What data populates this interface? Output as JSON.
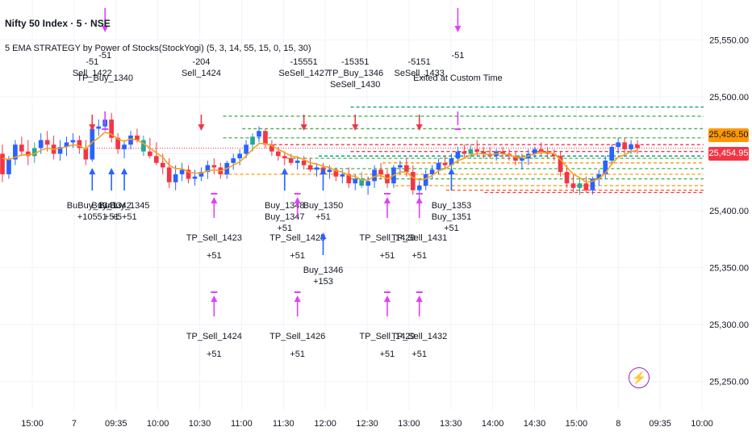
{
  "header": {
    "symbol_line": "Nifty 50 Index · 5 · NSE",
    "indicator_line": "5 EMA STRATEGY by Power of Stocks(StockYogi) (5, 3, 14, 55, 15, 0, 15, 30)"
  },
  "colors": {
    "up": "#2962ff",
    "down": "#f23645",
    "doji": "#9c27b0",
    "neutral_candle": "#26a69a",
    "ema": "#f7a21b",
    "buy_arrow": "#2962ff",
    "sell_arrow": "#f23645",
    "tp_marker": "#e040fb",
    "teal_line": "#009688",
    "price_tag_orange": "#ff9800",
    "price_tag_red": "#f23645"
  },
  "price_tags": {
    "upper": "25,456.50",
    "lower": "25,454.95"
  },
  "bolt_icon": "lightning-icon",
  "chart_data": {
    "type": "candlestick",
    "title": "Nifty 50 Index · 5 · NSE",
    "y_ticks": [
      "25,550.00",
      "25,500.00",
      "25,450.00",
      "25,400.00",
      "25,350.00",
      "25,300.00",
      "25,250.00"
    ],
    "y_tick_values": [
      25550,
      25500,
      25450,
      25400,
      25350,
      25300,
      25250
    ],
    "x_ticks": [
      "15:00",
      "7",
      "09:35",
      "10:00",
      "10:30",
      "11:00",
      "11:30",
      "12:00",
      "12:30",
      "13:00",
      "13:30",
      "14:00",
      "14:30",
      "15:00",
      "8",
      "09:35",
      "10:00"
    ],
    "ylim": [
      25225,
      25585
    ],
    "grid": true,
    "last_price": 25454.95,
    "upper_price": 25456.5,
    "candles": [
      [
        25450,
        25458,
        25425,
        25432
      ],
      [
        25432,
        25448,
        25428,
        25445
      ],
      [
        25445,
        25462,
        25440,
        25458
      ],
      [
        25458,
        25465,
        25448,
        25452
      ],
      [
        25452,
        25462,
        25440,
        25448
      ],
      [
        25448,
        25460,
        25442,
        25455
      ],
      [
        25455,
        25468,
        25450,
        25462
      ],
      [
        25462,
        25470,
        25452,
        25458
      ],
      [
        25458,
        25466,
        25445,
        25450
      ],
      [
        25450,
        25462,
        25444,
        25456
      ],
      [
        25456,
        25465,
        25448,
        25460
      ],
      [
        25460,
        25468,
        25455,
        25462
      ],
      [
        25462,
        25466,
        25450,
        25455
      ],
      [
        25455,
        25462,
        25440,
        25445
      ],
      [
        25445,
        25475,
        25443,
        25472
      ],
      [
        25472,
        25480,
        25466,
        25474
      ],
      [
        25474,
        25484,
        25470,
        25480
      ],
      [
        25480,
        25486,
        25460,
        25464
      ],
      [
        25464,
        25468,
        25450,
        25454
      ],
      [
        25454,
        25462,
        25446,
        25458
      ],
      [
        25458,
        25470,
        25454,
        25466
      ],
      [
        25466,
        25472,
        25460,
        25462
      ],
      [
        25462,
        25466,
        25448,
        25452
      ],
      [
        25452,
        25464,
        25446,
        25448
      ],
      [
        25448,
        25460,
        25440,
        25442
      ],
      [
        25442,
        25450,
        25432,
        25438
      ],
      [
        25438,
        25446,
        25420,
        25425
      ],
      [
        25425,
        25440,
        25418,
        25432
      ],
      [
        25432,
        25442,
        25426,
        25436
      ],
      [
        25436,
        25440,
        25424,
        25428
      ],
      [
        25428,
        25436,
        25422,
        25430
      ],
      [
        25430,
        25438,
        25426,
        25434
      ],
      [
        25434,
        25444,
        25428,
        25440
      ],
      [
        25440,
        25446,
        25432,
        25438
      ],
      [
        25438,
        25442,
        25428,
        25432
      ],
      [
        25432,
        25444,
        25428,
        25442
      ],
      [
        25442,
        25450,
        25436,
        25446
      ],
      [
        25446,
        25454,
        25440,
        25450
      ],
      [
        25450,
        25462,
        25446,
        25458
      ],
      [
        25458,
        25468,
        25452,
        25465
      ],
      [
        25465,
        25474,
        25460,
        25470
      ],
      [
        25470,
        25472,
        25455,
        25458
      ],
      [
        25458,
        25462,
        25448,
        25452
      ],
      [
        25452,
        25456,
        25444,
        25448
      ],
      [
        25448,
        25452,
        25440,
        25446
      ],
      [
        25446,
        25450,
        25440,
        25442
      ],
      [
        25442,
        25448,
        25436,
        25444
      ],
      [
        25444,
        25448,
        25436,
        25440
      ],
      [
        25440,
        25446,
        25434,
        25436
      ],
      [
        25436,
        25442,
        25430,
        25438
      ],
      [
        25438,
        25442,
        25432,
        25434
      ],
      [
        25434,
        25440,
        25428,
        25436
      ],
      [
        25436,
        25438,
        25426,
        25430
      ],
      [
        25430,
        25436,
        25424,
        25432
      ],
      [
        25432,
        25438,
        25420,
        25424
      ],
      [
        25424,
        25432,
        25418,
        25428
      ],
      [
        25428,
        25434,
        25420,
        25422
      ],
      [
        25422,
        25430,
        25414,
        25426
      ],
      [
        25426,
        25440,
        25420,
        25436
      ],
      [
        25436,
        25442,
        25428,
        25432
      ],
      [
        25432,
        25436,
        25420,
        25424
      ],
      [
        25424,
        25440,
        25420,
        25438
      ],
      [
        25438,
        25444,
        25432,
        25440
      ],
      [
        25440,
        25446,
        25430,
        25434
      ],
      [
        25434,
        25440,
        25414,
        25418
      ],
      [
        25418,
        25426,
        25410,
        25422
      ],
      [
        25422,
        25436,
        25418,
        25432
      ],
      [
        25432,
        25440,
        25428,
        25436
      ],
      [
        25436,
        25446,
        25432,
        25442
      ],
      [
        25442,
        25448,
        25436,
        25440
      ],
      [
        25440,
        25450,
        25436,
        25446
      ],
      [
        25446,
        25456,
        25442,
        25452
      ],
      [
        25452,
        25458,
        25446,
        25450
      ],
      [
        25450,
        25458,
        25446,
        25454
      ],
      [
        25454,
        25462,
        25448,
        25452
      ],
      [
        25452,
        25456,
        25446,
        25450
      ],
      [
        25450,
        25456,
        25446,
        25448
      ],
      [
        25448,
        25454,
        25444,
        25452
      ],
      [
        25452,
        25456,
        25446,
        25450
      ],
      [
        25450,
        25454,
        25444,
        25448
      ],
      [
        25448,
        25452,
        25440,
        25444
      ],
      [
        25444,
        25450,
        25436,
        25446
      ],
      [
        25446,
        25454,
        25440,
        25450
      ],
      [
        25450,
        25456,
        25446,
        25454
      ],
      [
        25454,
        25460,
        25448,
        25452
      ],
      [
        25452,
        25456,
        25446,
        25450
      ],
      [
        25450,
        25454,
        25444,
        25448
      ],
      [
        25448,
        25452,
        25430,
        25434
      ],
      [
        25434,
        25440,
        25420,
        25424
      ],
      [
        25424,
        25432,
        25416,
        25420
      ],
      [
        25420,
        25428,
        25414,
        25424
      ],
      [
        25424,
        25430,
        25416,
        25418
      ],
      [
        25418,
        25430,
        25414,
        25428
      ],
      [
        25428,
        25436,
        25422,
        25432
      ],
      [
        25432,
        25448,
        25428,
        25444
      ],
      [
        25444,
        25458,
        25440,
        25456
      ],
      [
        25456,
        25464,
        25450,
        25460
      ],
      [
        25460,
        25464,
        25450,
        25454
      ],
      [
        25454,
        25462,
        25450,
        25458
      ],
      [
        25458,
        25462,
        25450,
        25455
      ]
    ],
    "ema": [
      25446,
      25445,
      25447,
      25449,
      25449,
      25450,
      25453,
      25455,
      25454,
      25455,
      25456,
      25458,
      25457,
      25454,
      25460,
      25464,
      25469,
      25467,
      25463,
      25461,
      25463,
      25462,
      25459,
      25455,
      25451,
      25447,
      25440,
      25437,
      25437,
      25434,
      25433,
      25433,
      25435,
      25436,
      25435,
      25437,
      25440,
      25443,
      25448,
      25454,
      25459,
      25459,
      25457,
      25454,
      25451,
      25448,
      25447,
      25445,
      25442,
      25441,
      25439,
      25438,
      25435,
      25434,
      25431,
      25430,
      25427,
      25427,
      25430,
      25431,
      25428,
      25431,
      25434,
      25434,
      25429,
      25427,
      25428,
      25431,
      25435,
      25437,
      25440,
      25444,
      25446,
      25449,
      25450,
      25450,
      25449,
      25450,
      25450,
      25449,
      25447,
      25447,
      25448,
      25450,
      25451,
      25451,
      25450,
      25445,
      25438,
      25432,
      25429,
      25425,
      25426,
      25428,
      25433,
      25441,
      25447,
      25449,
      25452,
      25453
    ],
    "h_lines": [
      {
        "price": 25491,
        "style": "dashed",
        "color": "#009688",
        "from": 0.55
      },
      {
        "price": 25483,
        "style": "dashed",
        "color": "#4caf50",
        "from": 0.35
      },
      {
        "price": 25472,
        "style": "dashed",
        "color": "#4caf50",
        "from": 0.38
      },
      {
        "price": 25464,
        "style": "dashed",
        "color": "#4caf50",
        "from": 0.35
      },
      {
        "price": 25458,
        "style": "dashed",
        "color": "#f23645",
        "from": 0.42
      },
      {
        "price": 25452,
        "style": "dashed",
        "color": "#f23645",
        "from": 0.55
      },
      {
        "price": 25448,
        "style": "dashed",
        "color": "#009688",
        "from": 0.5
      },
      {
        "price": 25446,
        "style": "dashed",
        "color": "#4caf50",
        "from": 0.45
      },
      {
        "price": 25442,
        "style": "dashed",
        "color": "#ff9800",
        "from": 0.6
      },
      {
        "price": 25437,
        "style": "dashed",
        "color": "#4caf50",
        "from": 0.48
      },
      {
        "price": 25432,
        "style": "dashed",
        "color": "#ff9800",
        "from": 0.35
      },
      {
        "price": 25428,
        "style": "dashed",
        "color": "#4caf50",
        "from": 0.55
      },
      {
        "price": 25422,
        "style": "dashed",
        "color": "#ff9800",
        "from": 0.62
      },
      {
        "price": 25418,
        "style": "dashed",
        "color": "#ff5722",
        "from": 0.7
      },
      {
        "price": 25416,
        "style": "dashed",
        "color": "#f23645",
        "from": 0.76
      }
    ],
    "signals": [
      {
        "type": "sell",
        "index": 14,
        "lines": [
          "-51",
          "Sell_1422"
        ]
      },
      {
        "type": "tp_top",
        "index": 16,
        "lines": [
          "-51",
          "TP_Buy_1340"
        ]
      },
      {
        "type": "buy",
        "index": 14,
        "lines": [
          "BuBuy_1341",
          "+10551"
        ]
      },
      {
        "type": "buy",
        "index": 17,
        "lines": [
          "Buy_1342",
          "+51"
        ]
      },
      {
        "type": "buy",
        "index": 19,
        "lines": [
          "BuBuy_1345",
          "+5+51"
        ]
      },
      {
        "type": "sell",
        "index": 31,
        "lines": [
          "-204",
          "Sell_1424"
        ]
      },
      {
        "type": "tp_bottom",
        "index": 33,
        "lines": [
          "TP_Sell_1423",
          "+51"
        ]
      },
      {
        "type": "tp_bottom2",
        "index": 33,
        "lines": [
          "TP_Sell_1424",
          "+51"
        ]
      },
      {
        "type": "buy",
        "index": 44,
        "lines": [
          "Buy_1348",
          "Buy_1347",
          "+51"
        ]
      },
      {
        "type": "sell",
        "index": 47,
        "lines": [
          "-15551",
          "SeSell_1427"
        ]
      },
      {
        "type": "tp_bottom",
        "index": 46,
        "lines": [
          "TP_Sell_1425",
          "+51"
        ]
      },
      {
        "type": "tp_bottom2",
        "index": 46,
        "lines": [
          "TP_Sell_1426",
          "+51"
        ]
      },
      {
        "type": "buy",
        "index": 50,
        "lines": [
          "Buy_1350",
          "+51"
        ]
      },
      {
        "type": "buy",
        "index": 50,
        "lines": [
          "Buy_1346",
          "+153"
        ]
      },
      {
        "type": "sell",
        "index": 55,
        "lines": [
          "-15351",
          "TP_Buy_1346",
          "SeSell_1430"
        ]
      },
      {
        "type": "tp_bottom",
        "index": 60,
        "lines": [
          "TP_Sell_1428",
          "+51"
        ]
      },
      {
        "type": "tp_bottom2",
        "index": 60,
        "lines": [
          "TP_Sell_1429",
          "+51"
        ]
      },
      {
        "type": "sell",
        "index": 65,
        "lines": [
          "-5151",
          "SeSell_1433"
        ]
      },
      {
        "type": "tp_bottom",
        "index": 65,
        "lines": [
          "TP_Sell_1431",
          "+51"
        ]
      },
      {
        "type": "tp_bottom2",
        "index": 65,
        "lines": [
          "TP_Sell_1432",
          "+51"
        ]
      },
      {
        "type": "tp_top",
        "index": 71,
        "lines": [
          "-51",
          "Exited at Custom Time"
        ]
      },
      {
        "type": "buy",
        "index": 70,
        "lines": [
          "Buy_1353",
          "Buy_1351",
          "+51"
        ]
      }
    ]
  }
}
